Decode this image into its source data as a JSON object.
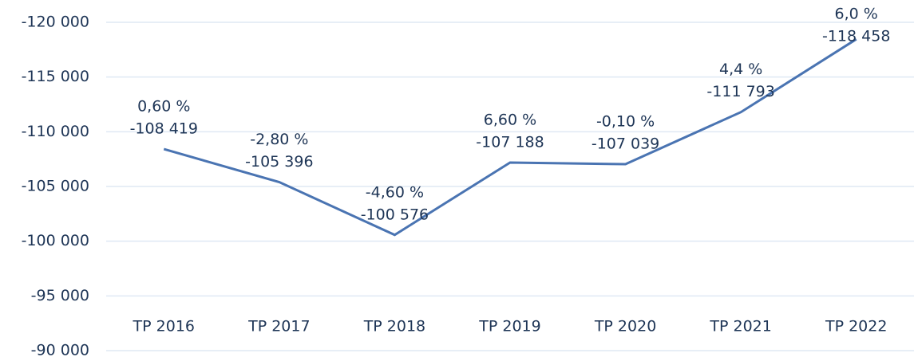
{
  "chart_data": {
    "type": "line",
    "categories": [
      "TP 2016",
      "TP 2017",
      "TP 2018",
      "TP 2019",
      "TP 2020",
      "TP 2021",
      "TP 2022"
    ],
    "series": [
      {
        "color": "#4a74b2",
        "values": [
          -108419,
          -105396,
          -100576,
          -107188,
          -107039,
          -111793,
          -118458
        ],
        "value_labels": [
          "-108 419",
          "-105 396",
          "-100 576",
          "-107 188",
          "-107 039",
          "-111 793",
          "-118 458"
        ]
      }
    ],
    "annotations": [
      "0,60 %",
      "-2,80 %",
      "-4,60 %",
      "6,60 %",
      "-0,10 %",
      "4,4 %",
      "6,0 %"
    ],
    "ylim": [
      -90000,
      -120000
    ],
    "yticks": [
      {
        "value": -120000,
        "label": "-120 000"
      },
      {
        "value": -115000,
        "label": "-115 000"
      },
      {
        "value": -110000,
        "label": "-110 000"
      },
      {
        "value": -105000,
        "label": "-105 000"
      },
      {
        "value": -100000,
        "label": "-100 000"
      },
      {
        "value": -95000,
        "label": "-95 000"
      },
      {
        "value": -90000,
        "label": "-90 000"
      }
    ],
    "grid": true
  }
}
